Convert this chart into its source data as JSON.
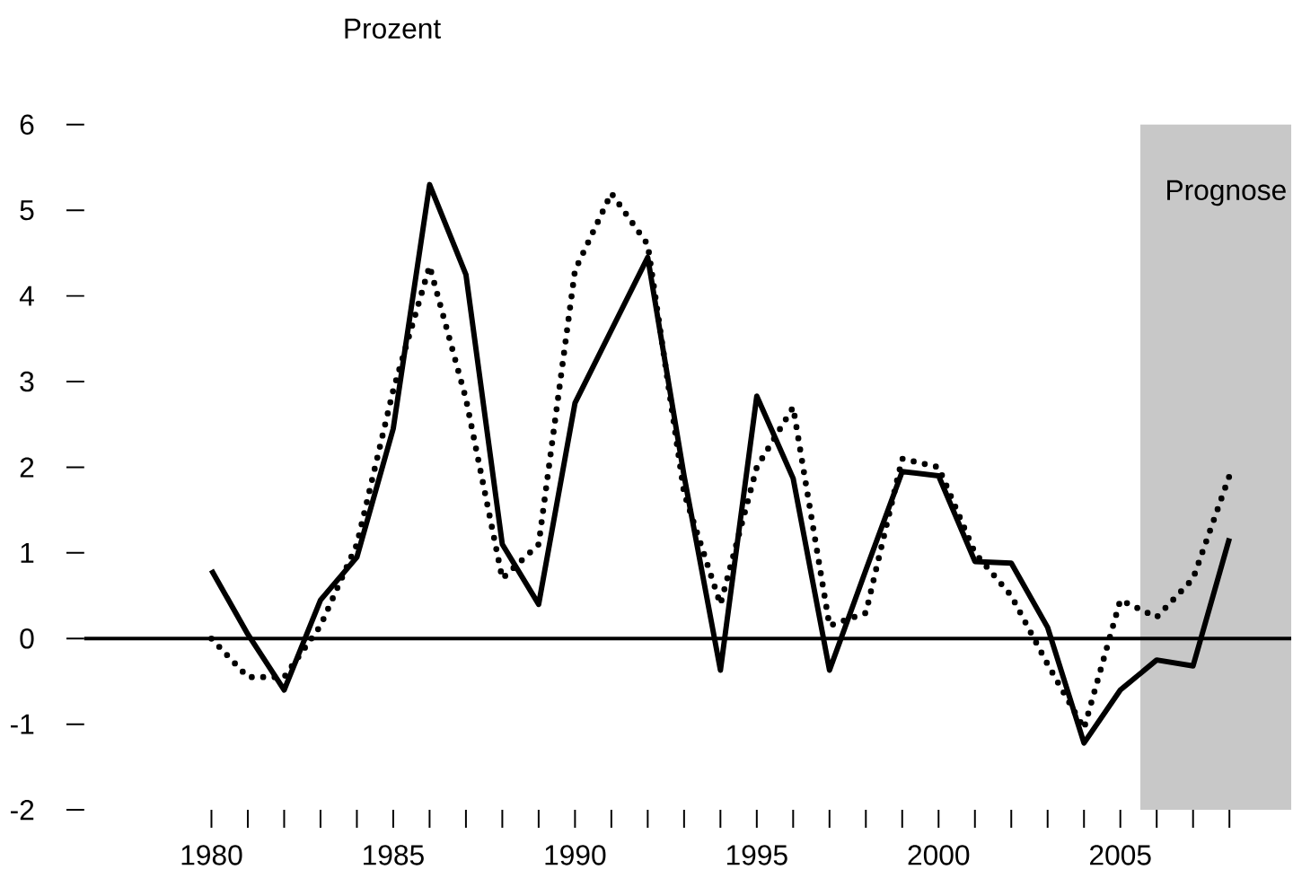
{
  "chart_data": {
    "type": "line",
    "ylabel": "Prozent",
    "x": [
      1980,
      1981,
      1982,
      1983,
      1984,
      1985,
      1986,
      1987,
      1988,
      1989,
      1990,
      1991,
      1992,
      1993,
      1994,
      1995,
      1996,
      1997,
      1998,
      1999,
      2000,
      2001,
      2002,
      2003,
      2004,
      2005,
      2006,
      2007,
      2008
    ],
    "series": [
      {
        "color": "#000000",
        "line_style": "solid",
        "values": [
          0.8,
          0.05,
          -0.6,
          0.45,
          0.95,
          2.45,
          5.3,
          4.25,
          1.1,
          0.4,
          2.75,
          3.6,
          4.45,
          1.9,
          -0.37,
          2.83,
          1.87,
          -0.37,
          0.8,
          1.95,
          1.9,
          0.9,
          0.88,
          0.13,
          -1.22,
          -0.6,
          -0.25,
          -0.32,
          1.17
        ]
      },
      {
        "color": "#000000",
        "line_style": "dotted",
        "values": [
          0.0,
          -0.45,
          -0.45,
          0.15,
          1.1,
          2.9,
          4.35,
          2.8,
          0.7,
          1.1,
          4.3,
          5.2,
          4.6,
          1.7,
          0.4,
          2.0,
          2.7,
          0.15,
          0.3,
          2.1,
          2.0,
          1.0,
          0.5,
          -0.3,
          -1.05,
          0.45,
          0.25,
          0.7,
          1.9
        ]
      }
    ],
    "xlim": [
      1976.5,
      2009.7
    ],
    "ylim": [
      -2,
      6
    ],
    "xticks": [
      1980,
      {
        "value": 1981,
        "label": null
      },
      {
        "value": 1982,
        "label": null
      },
      {
        "value": 1983,
        "label": null
      },
      {
        "value": 1984,
        "label": null
      },
      1985,
      {
        "value": 1986,
        "label": null
      },
      {
        "value": 1987,
        "label": null
      },
      {
        "value": 1988,
        "label": null
      },
      {
        "value": 1989,
        "label": null
      },
      1990,
      {
        "value": 1991,
        "label": null
      },
      {
        "value": 1992,
        "label": null
      },
      {
        "value": 1993,
        "label": null
      },
      {
        "value": 1994,
        "label": null
      },
      1995,
      {
        "value": 1996,
        "label": null
      },
      {
        "value": 1997,
        "label": null
      },
      {
        "value": 1998,
        "label": null
      },
      {
        "value": 1999,
        "label": null
      },
      2000,
      {
        "value": 2001,
        "label": null
      },
      {
        "value": 2002,
        "label": null
      },
      {
        "value": 2003,
        "label": null
      },
      {
        "value": 2004,
        "label": null
      },
      2005,
      {
        "value": 2006,
        "label": null
      },
      {
        "value": 2007,
        "label": null
      },
      {
        "value": 2008,
        "label": null
      }
    ],
    "yticks": [
      -2,
      -1,
      0,
      1,
      2,
      3,
      4,
      5,
      6
    ],
    "ref_lines": [
      {
        "axis": "y",
        "value": 0,
        "color": "#000000"
      }
    ],
    "bands": [
      {
        "axis": "x",
        "from": 2005.55,
        "to": 2009.7,
        "label": "Prognose",
        "color": "#c8c8c8"
      }
    ],
    "grid": false
  }
}
